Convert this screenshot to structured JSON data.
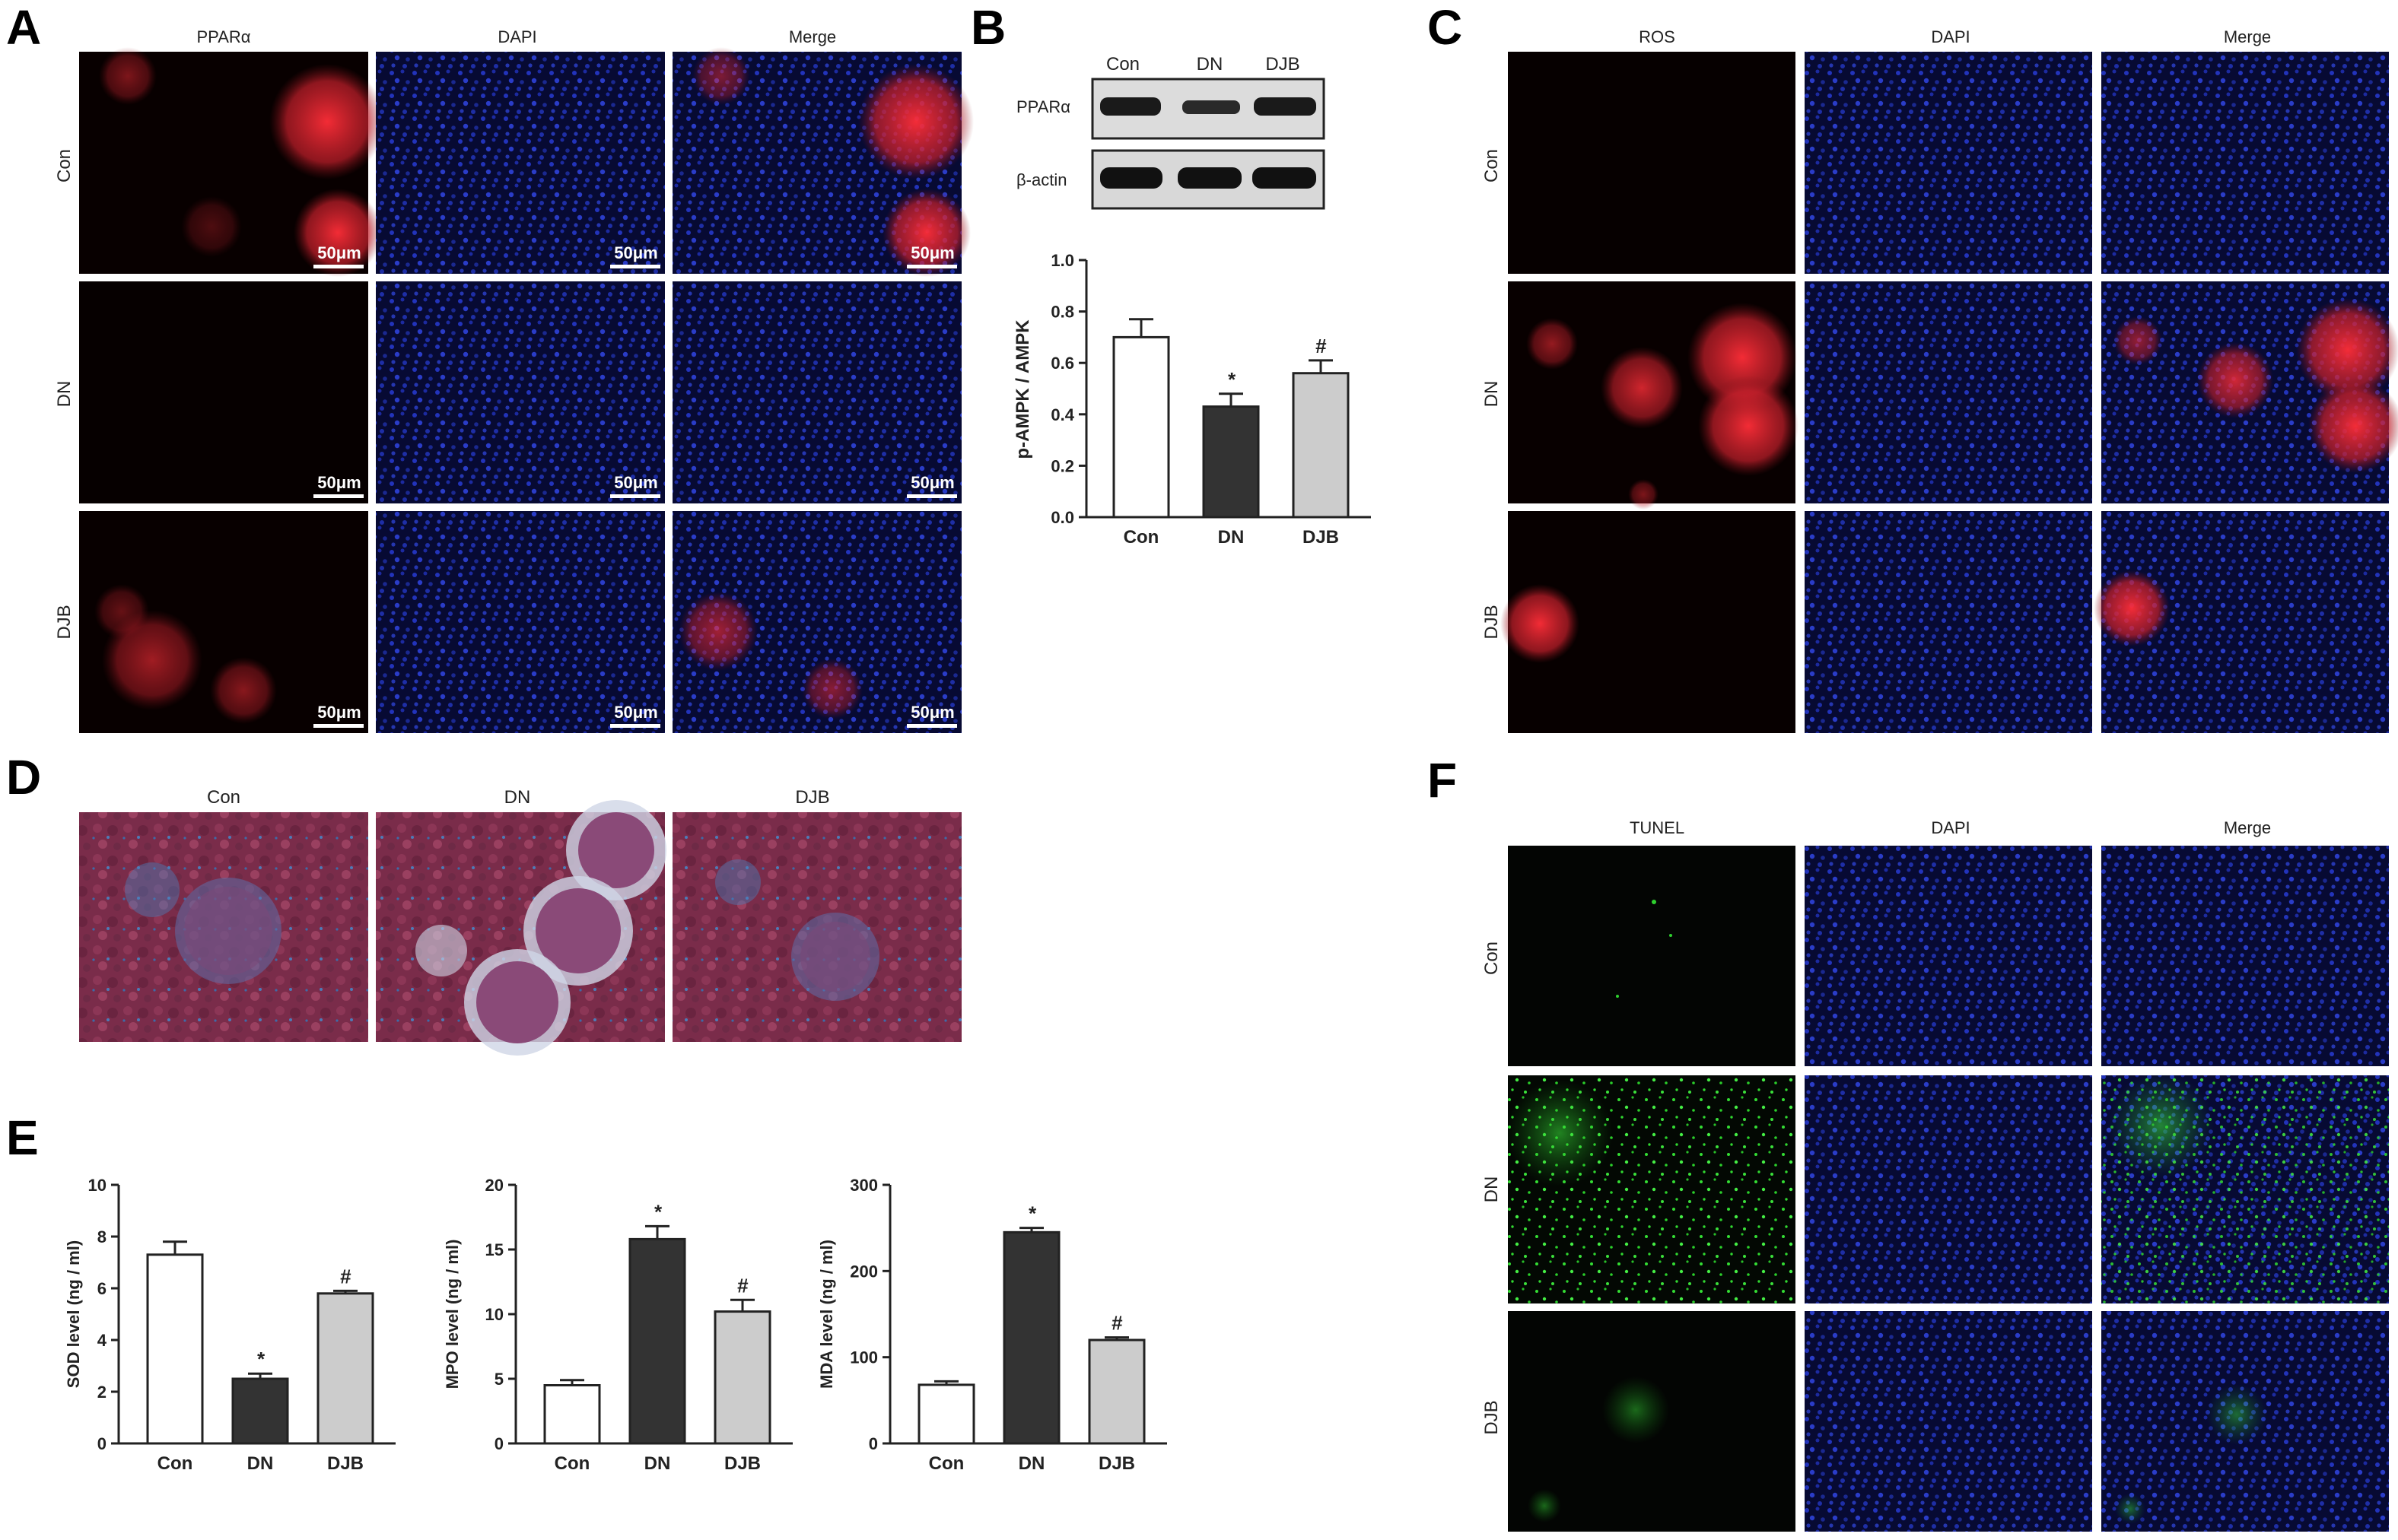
{
  "panels": {
    "A": {
      "letter": "A",
      "columns": [
        "PPARα",
        "DAPI",
        "Merge"
      ],
      "rows": [
        "Con",
        "DN",
        "DJB"
      ],
      "scale_bar": "50μm"
    },
    "B": {
      "letter": "B",
      "blot_lanes": [
        "Con",
        "DN",
        "DJB"
      ],
      "blot_rows": [
        "PPARα",
        "β-actin"
      ]
    },
    "C": {
      "letter": "C",
      "columns": [
        "ROS",
        "DAPI",
        "Merge"
      ],
      "rows": [
        "Con",
        "DN",
        "DJB"
      ]
    },
    "D": {
      "letter": "D",
      "columns": [
        "Con",
        "DN",
        "DJB"
      ]
    },
    "E": {
      "letter": "E"
    },
    "F": {
      "letter": "F",
      "columns": [
        "TUNEL",
        "DAPI",
        "Merge"
      ],
      "rows": [
        "Con",
        "DN",
        "DJB"
      ]
    }
  },
  "colors": {
    "dapi_blue": "#1a2a9c",
    "fluor_red": "#e0202a",
    "tunel_green": "#2ed02e",
    "masson_red": "#7a2c4a",
    "masson_blue": "#4c7cb8",
    "bar_con": "#ffffff",
    "bar_dn": "#333333",
    "bar_djb": "#cccccc"
  },
  "chart_data": [
    {
      "panel": "B",
      "type": "bar",
      "categories": [
        "Con",
        "DN",
        "DJB"
      ],
      "values": [
        0.7,
        0.43,
        0.56
      ],
      "errors": [
        0.07,
        0.05,
        0.05
      ],
      "annotations": [
        "",
        "*",
        "#"
      ],
      "ylabel": "p-AMPK / AMPK",
      "ylim": [
        0,
        1.0
      ],
      "yticks": [
        0.0,
        0.2,
        0.4,
        0.6,
        0.8,
        1.0
      ],
      "ytick_labels": [
        "0.0",
        "0.2",
        "0.4",
        "0.6",
        "0.8",
        "1.0"
      ]
    },
    {
      "panel": "E",
      "type": "bar",
      "categories": [
        "Con",
        "DN",
        "DJB"
      ],
      "values": [
        7.3,
        2.5,
        5.8
      ],
      "errors": [
        0.5,
        0.2,
        0.1
      ],
      "annotations": [
        "",
        "*",
        "#"
      ],
      "ylabel": "SOD level (ng / ml)",
      "ylim": [
        0,
        10
      ],
      "yticks": [
        0,
        2,
        4,
        6,
        8,
        10
      ],
      "ytick_labels": [
        "0",
        "2",
        "4",
        "6",
        "8",
        "10"
      ]
    },
    {
      "panel": "E",
      "type": "bar",
      "categories": [
        "Con",
        "DN",
        "DJB"
      ],
      "values": [
        4.5,
        15.8,
        10.2
      ],
      "errors": [
        0.4,
        1.0,
        0.9
      ],
      "annotations": [
        "",
        "*",
        "#"
      ],
      "ylabel": "MPO level (ng / ml)",
      "ylim": [
        0,
        20
      ],
      "yticks": [
        0,
        5,
        10,
        15,
        20
      ],
      "ytick_labels": [
        "0",
        "5",
        "10",
        "15",
        "20"
      ]
    },
    {
      "panel": "E",
      "type": "bar",
      "categories": [
        "Con",
        "DN",
        "DJB"
      ],
      "values": [
        68,
        245,
        120
      ],
      "errors": [
        4,
        5,
        3
      ],
      "annotations": [
        "",
        "*",
        "#"
      ],
      "ylabel": "MDA level (ng / ml)",
      "ylim": [
        0,
        300
      ],
      "yticks": [
        0,
        100,
        200,
        300
      ],
      "ytick_labels": [
        "0",
        "100",
        "200",
        "300"
      ]
    }
  ]
}
